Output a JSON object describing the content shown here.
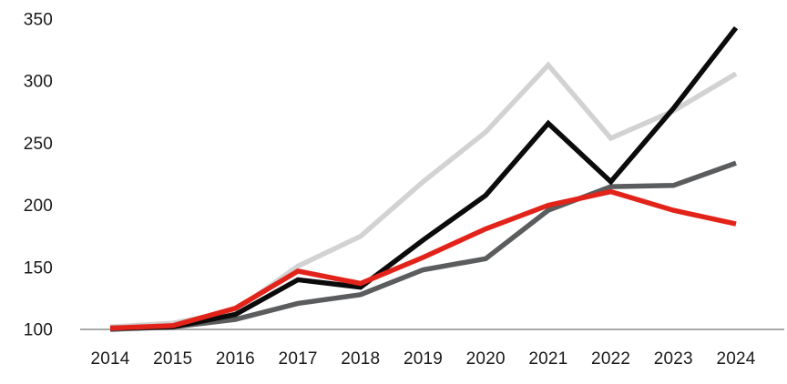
{
  "chart_data": {
    "type": "line",
    "x_categories": [
      "2014",
      "2015",
      "2016",
      "2017",
      "2018",
      "2019",
      "2020",
      "2021",
      "2022",
      "2023",
      "2024"
    ],
    "series": [
      {
        "name": "light-gray-series",
        "color": "#d2d2d2",
        "values": [
          102,
          105,
          115,
          151,
          175,
          219,
          259,
          313,
          254,
          276,
          306
        ]
      },
      {
        "name": "dark-gray-series",
        "color": "#5b5c5e",
        "values": [
          100,
          102,
          108,
          121,
          128,
          148,
          157,
          196,
          215,
          216,
          234
        ]
      },
      {
        "name": "black-series",
        "color": "#0b0b0b",
        "values": [
          101,
          102,
          112,
          140,
          134,
          172,
          208,
          266,
          219,
          278,
          343
        ]
      },
      {
        "name": "red-series",
        "color": "#e2231a",
        "values": [
          101,
          103,
          117,
          147,
          137,
          158,
          181,
          200,
          211,
          196,
          185
        ]
      }
    ],
    "y_ticks": [
      100,
      150,
      200,
      250,
      300,
      350
    ],
    "ylim": [
      100,
      350
    ],
    "grid": false,
    "legend": "none",
    "title": "",
    "xlabel": "",
    "ylabel": "",
    "baseline_value": 100,
    "axis_line_color": "#a9a9a9",
    "tick_label_color": "#1a1a1a",
    "background_color": "#ffffff"
  }
}
